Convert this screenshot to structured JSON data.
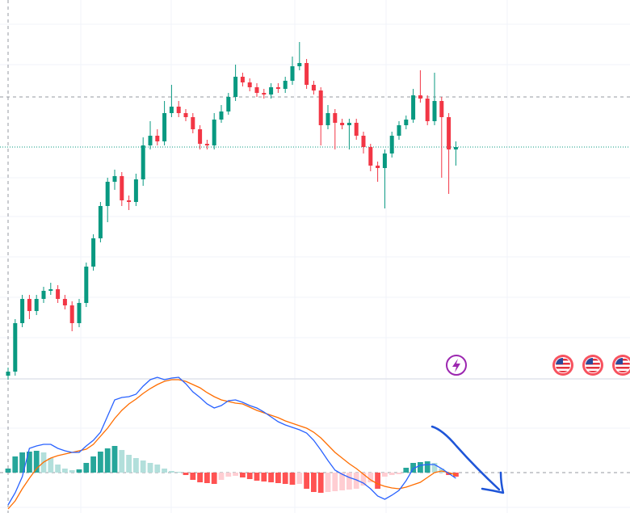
{
  "chart_data": [
    {
      "type": "candlestick",
      "ylim": [
        0,
        470
      ],
      "up_color": "#089981",
      "down_color": "#f23645",
      "reference_line": 350,
      "open": [
        5,
        10,
        70,
        100,
        85,
        100,
        110,
        112,
        100,
        92,
        70,
        95,
        140,
        175,
        215,
        245,
        252,
        222,
        220,
        248,
        290,
        302,
        295,
        330,
        338,
        330,
        325,
        310,
        292,
        290,
        322,
        332,
        350,
        375,
        368,
        362,
        355,
        353,
        362,
        360,
        370,
        388,
        392,
        365,
        358,
        315,
        330,
        318,
        315,
        318,
        302,
        288,
        265,
        262,
        280,
        302,
        315,
        322,
        352,
        348,
        320,
        345,
        325,
        285
      ],
      "high": [
        15,
        75,
        105,
        105,
        105,
        115,
        120,
        117,
        105,
        97,
        100,
        145,
        180,
        220,
        250,
        260,
        257,
        228,
        255,
        300,
        320,
        310,
        345,
        365,
        345,
        335,
        330,
        315,
        297,
        330,
        340,
        355,
        390,
        380,
        373,
        367,
        360,
        367,
        367,
        375,
        400,
        418,
        397,
        370,
        362,
        340,
        335,
        323,
        323,
        323,
        307,
        292,
        270,
        285,
        307,
        320,
        327,
        360,
        383,
        352,
        380,
        350,
        330,
        295
      ],
      "low": [
        0,
        5,
        65,
        75,
        80,
        95,
        105,
        95,
        87,
        60,
        65,
        90,
        135,
        170,
        195,
        235,
        215,
        210,
        215,
        240,
        285,
        290,
        290,
        325,
        325,
        320,
        305,
        285,
        285,
        285,
        318,
        328,
        345,
        363,
        357,
        350,
        348,
        348,
        355,
        355,
        365,
        383,
        360,
        353,
        290,
        310,
        285,
        310,
        285,
        297,
        280,
        258,
        245,
        212,
        275,
        297,
        310,
        318,
        343,
        315,
        315,
        250,
        230,
        265
      ],
      "close": [
        10,
        70,
        100,
        85,
        100,
        110,
        112,
        100,
        92,
        70,
        95,
        140,
        175,
        215,
        245,
        252,
        222,
        220,
        248,
        290,
        302,
        295,
        330,
        338,
        330,
        325,
        310,
        292,
        290,
        322,
        332,
        350,
        375,
        368,
        362,
        355,
        353,
        362,
        360,
        370,
        388,
        392,
        365,
        358,
        315,
        330,
        318,
        315,
        318,
        302,
        288,
        265,
        262,
        280,
        302,
        315,
        322,
        352,
        348,
        320,
        345,
        325,
        285,
        288
      ]
    },
    {
      "type": "macd",
      "ylim": [
        -50,
        115
      ],
      "zero_line": 0,
      "macd_color": "#2962ff",
      "signal_color": "#ff6d00",
      "histogram_colors": [
        "#26a69a",
        "#b2dfdb",
        "#ff5252",
        "#ffcdd2"
      ],
      "macd": [
        -40,
        -25,
        -5,
        30,
        33,
        35,
        35,
        30,
        27,
        25,
        25,
        33,
        40,
        50,
        70,
        90,
        93,
        94,
        97,
        107,
        115,
        118,
        115,
        117,
        118,
        110,
        100,
        93,
        85,
        80,
        83,
        89,
        90,
        87,
        83,
        80,
        75,
        69,
        63,
        59,
        56,
        53,
        49,
        40,
        28,
        15,
        3,
        -2,
        -6,
        -9,
        -13,
        -20,
        -29,
        -33,
        -28,
        -22,
        -10,
        5,
        9,
        10,
        10,
        5,
        -1,
        -7
      ],
      "signal": [
        -45,
        -35,
        -20,
        -7,
        5,
        13,
        18,
        21,
        23,
        25,
        27,
        29,
        35,
        45,
        55,
        67,
        77,
        85,
        91,
        98,
        104,
        109,
        113,
        115,
        115,
        113,
        109,
        105,
        99,
        94,
        90,
        88,
        86,
        85,
        81,
        77,
        74,
        71,
        68,
        64,
        61,
        58,
        55,
        50,
        43,
        34,
        25,
        18,
        11,
        5,
        -2,
        -9,
        -14,
        -17,
        -19,
        -20,
        -18,
        -15,
        -12,
        -6,
        0,
        2,
        0,
        -3
      ],
      "histogram": [
        5,
        20,
        25,
        26,
        27,
        25,
        18,
        10,
        5,
        3,
        4,
        12,
        20,
        26,
        30,
        33,
        28,
        22,
        18,
        15,
        12,
        10,
        5,
        2,
        1,
        -3,
        -9,
        -12,
        -13,
        -14,
        -9,
        -5,
        -4,
        -6,
        -8,
        -10,
        -11,
        -12,
        -13,
        -14,
        -15,
        -14,
        -20,
        -24,
        -25,
        -24,
        -23,
        -22,
        -21,
        -20,
        -16,
        -12,
        -20,
        -5,
        -3,
        -2,
        6,
        12,
        13,
        14,
        12,
        5,
        -3,
        -5
      ]
    }
  ]
}
